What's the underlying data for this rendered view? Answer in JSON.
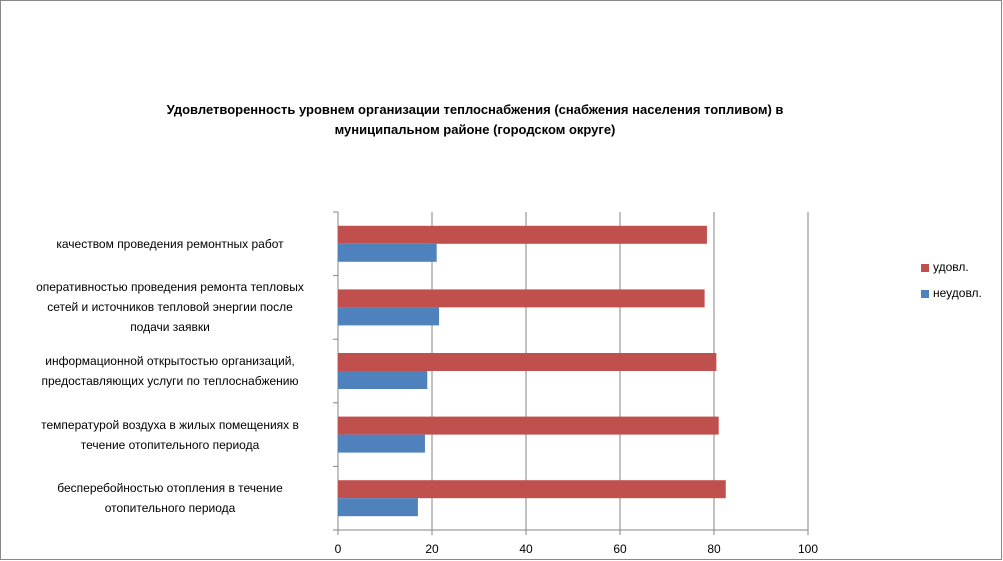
{
  "chart_data": {
    "type": "hbar",
    "title": "Удовлетворенность уровнем организации теплоснабжения (снабжения населения топливом) в\nмуниципальном районе (городском округе)",
    "categories": [
      "качеством проведения ремонтных работ",
      "оперативностью проведения ремонта тепловых\nсетей и источников тепловой энергии после\nподачи заявки",
      "информационной открытостью организаций,\nпредоставляющих услуги по теплоснабжению",
      "температурой воздуха в жилых помещениях в\nтечение отопительного периода",
      "бесперебойностью отопления в течение\nотопительного периода"
    ],
    "series": [
      {
        "name": "удовл.",
        "color": "#c0504d",
        "values": [
          78.5,
          78,
          80.5,
          81,
          82.5
        ]
      },
      {
        "name": "неудовл.",
        "color": "#4f81bd",
        "values": [
          21,
          21.5,
          19,
          18.5,
          17
        ]
      }
    ],
    "xlim": [
      0,
      100
    ],
    "xticks": [
      0,
      20,
      40,
      60,
      80,
      100
    ],
    "grid": true,
    "legend": "right"
  }
}
